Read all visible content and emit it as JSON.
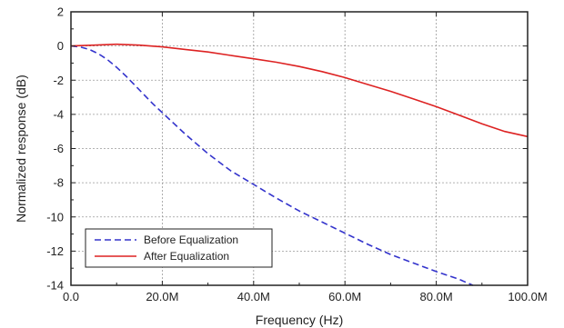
{
  "chart_data": {
    "type": "line",
    "title": "",
    "xlabel": "Frequency (Hz)",
    "ylabel": "Normalized response (dB)",
    "xlim": [
      0,
      100
    ],
    "ylim": [
      -14,
      2
    ],
    "grid": true,
    "legend_position": "bottom-left",
    "x_ticks": [
      {
        "value": 0,
        "label": "0.0"
      },
      {
        "value": 20,
        "label": "20.0M"
      },
      {
        "value": 40,
        "label": "40.0M"
      },
      {
        "value": 60,
        "label": "60.0M"
      },
      {
        "value": 80,
        "label": "80.0M"
      },
      {
        "value": 100,
        "label": "100.0M"
      }
    ],
    "y_ticks": [
      {
        "value": 2,
        "label": "2"
      },
      {
        "value": 0,
        "label": "0"
      },
      {
        "value": -2,
        "label": "-2"
      },
      {
        "value": -4,
        "label": "-4"
      },
      {
        "value": -6,
        "label": "-6"
      },
      {
        "value": -8,
        "label": "-8"
      },
      {
        "value": -10,
        "label": "-10"
      },
      {
        "value": -12,
        "label": "-12"
      },
      {
        "value": -14,
        "label": "-14"
      }
    ],
    "series": [
      {
        "name": "Before Equalization",
        "color": "#3333cc",
        "dash": "dashed",
        "x": [
          0,
          2,
          4,
          6,
          8,
          10,
          12,
          14,
          16,
          18,
          20,
          25,
          30,
          35,
          40,
          45,
          50,
          55,
          60,
          65,
          70,
          75,
          80,
          85,
          88
        ],
        "y": [
          0,
          -0.05,
          -0.2,
          -0.45,
          -0.8,
          -1.25,
          -1.75,
          -2.3,
          -2.85,
          -3.4,
          -3.9,
          -5.15,
          -6.3,
          -7.3,
          -8.1,
          -8.9,
          -9.65,
          -10.3,
          -10.95,
          -11.6,
          -12.2,
          -12.7,
          -13.2,
          -13.65,
          -14
        ]
      },
      {
        "name": "After Equalization",
        "color": "#dd2222",
        "dash": "solid",
        "x": [
          0,
          5,
          10,
          15,
          20,
          25,
          30,
          35,
          40,
          45,
          50,
          55,
          60,
          65,
          70,
          75,
          80,
          85,
          90,
          95,
          100
        ],
        "y": [
          0,
          0.05,
          0.1,
          0.05,
          -0.05,
          -0.2,
          -0.35,
          -0.55,
          -0.75,
          -0.95,
          -1.2,
          -1.5,
          -1.85,
          -2.25,
          -2.65,
          -3.1,
          -3.55,
          -4.05,
          -4.55,
          -5.0,
          -5.3
        ]
      }
    ]
  }
}
